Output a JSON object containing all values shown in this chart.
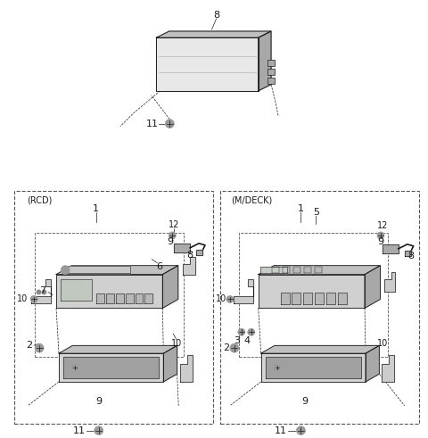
{
  "background_color": "#ffffff",
  "fig_width": 4.8,
  "fig_height": 4.91,
  "dpi": 100
}
